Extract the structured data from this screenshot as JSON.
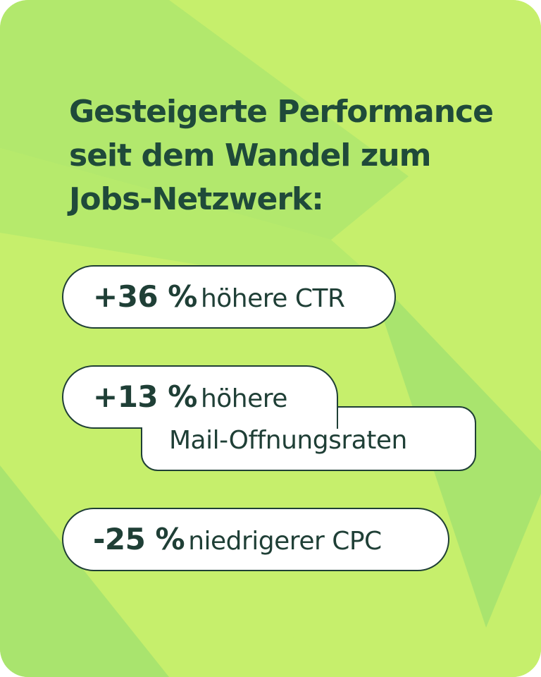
{
  "headline": {
    "line1": "Gesteigerte Performance",
    "line2": "seit dem Wandel zum",
    "line3": "Jobs-Netzwerk:"
  },
  "stats": [
    {
      "value": "+36 %",
      "label": "höhere CTR"
    },
    {
      "value": "+13 %",
      "label_line1": "höhere",
      "label_line2": "Mail-Öffnungsraten"
    },
    {
      "value": "-25 %",
      "label": "niedrigerer CPC"
    }
  ],
  "colors": {
    "background": "#c6ef6c",
    "background_shape": "#a9e46e",
    "headline_text": "#1f4a3a",
    "pill_text": "#1f3f36",
    "pill_fill": "#ffffff"
  }
}
